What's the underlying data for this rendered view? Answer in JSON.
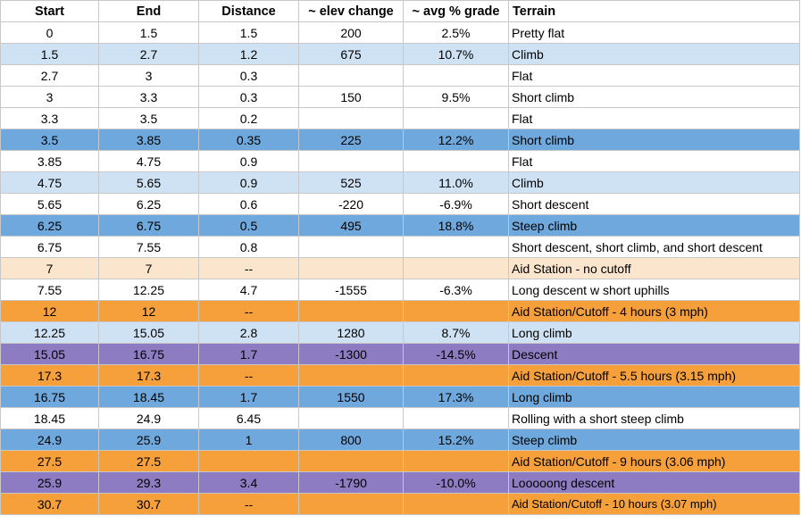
{
  "colors": {
    "white": "#ffffff",
    "light_blue": "#cfe2f3",
    "blue": "#6fa8dc",
    "peach": "#fce5cd",
    "orange": "#f6a03c",
    "purple": "#8e7cc3"
  },
  "headers": [
    "Start",
    "End",
    "Distance",
    "~ elev change",
    "~ avg % grade",
    "Terrain"
  ],
  "rows": [
    {
      "start": "0",
      "end": "1.5",
      "distance": "1.5",
      "elev": "200",
      "grade": "2.5%",
      "terrain": "Pretty flat",
      "color": "white"
    },
    {
      "start": "1.5",
      "end": "2.7",
      "distance": "1.2",
      "elev": "675",
      "grade": "10.7%",
      "terrain": "Climb",
      "color": "light_blue"
    },
    {
      "start": "2.7",
      "end": "3",
      "distance": "0.3",
      "elev": "",
      "grade": "",
      "terrain": "Flat",
      "color": "white"
    },
    {
      "start": "3",
      "end": "3.3",
      "distance": "0.3",
      "elev": "150",
      "grade": "9.5%",
      "terrain": "Short climb",
      "color": "white"
    },
    {
      "start": "3.3",
      "end": "3.5",
      "distance": "0.2",
      "elev": "",
      "grade": "",
      "terrain": "Flat",
      "color": "white"
    },
    {
      "start": "3.5",
      "end": "3.85",
      "distance": "0.35",
      "elev": "225",
      "grade": "12.2%",
      "terrain": "Short climb",
      "color": "blue"
    },
    {
      "start": "3.85",
      "end": "4.75",
      "distance": "0.9",
      "elev": "",
      "grade": "",
      "terrain": "Flat",
      "color": "white"
    },
    {
      "start": "4.75",
      "end": "5.65",
      "distance": "0.9",
      "elev": "525",
      "grade": "11.0%",
      "terrain": "Climb",
      "color": "light_blue"
    },
    {
      "start": "5.65",
      "end": "6.25",
      "distance": "0.6",
      "elev": "-220",
      "grade": "-6.9%",
      "terrain": "Short descent",
      "color": "white"
    },
    {
      "start": "6.25",
      "end": "6.75",
      "distance": "0.5",
      "elev": "495",
      "grade": "18.8%",
      "terrain": "Steep climb",
      "color": "blue"
    },
    {
      "start": "6.75",
      "end": "7.55",
      "distance": "0.8",
      "elev": "",
      "grade": "",
      "terrain": "Short descent, short climb, and short descent",
      "color": "white"
    },
    {
      "start": "7",
      "end": "7",
      "distance": "--",
      "elev": "",
      "grade": "",
      "terrain": "Aid Station - no cutoff",
      "color": "peach"
    },
    {
      "start": "7.55",
      "end": "12.25",
      "distance": "4.7",
      "elev": "-1555",
      "grade": "-6.3%",
      "terrain": "Long descent w short uphills",
      "color": "white"
    },
    {
      "start": "12",
      "end": "12",
      "distance": "--",
      "elev": "",
      "grade": "",
      "terrain": "Aid Station/Cutoff - 4 hours (3 mph)",
      "color": "orange"
    },
    {
      "start": "12.25",
      "end": "15.05",
      "distance": "2.8",
      "elev": "1280",
      "grade": "8.7%",
      "terrain": "Long climb",
      "color": "light_blue"
    },
    {
      "start": "15.05",
      "end": "16.75",
      "distance": "1.7",
      "elev": "-1300",
      "grade": "-14.5%",
      "terrain": "Descent",
      "color": "purple"
    },
    {
      "start": "17.3",
      "end": "17.3",
      "distance": "--",
      "elev": "",
      "grade": "",
      "terrain": "Aid Station/Cutoff - 5.5 hours (3.15 mph)",
      "color": "orange"
    },
    {
      "start": "16.75",
      "end": "18.45",
      "distance": "1.7",
      "elev": "1550",
      "grade": "17.3%",
      "terrain": "Long climb",
      "color": "blue"
    },
    {
      "start": "18.45",
      "end": "24.9",
      "distance": "6.45",
      "elev": "",
      "grade": "",
      "terrain": "Rolling with a short steep climb",
      "color": "white"
    },
    {
      "start": "24.9",
      "end": "25.9",
      "distance": "1",
      "elev": "800",
      "grade": "15.2%",
      "terrain": "Steep climb",
      "color": "blue"
    },
    {
      "start": "27.5",
      "end": "27.5",
      "distance": "",
      "elev": "",
      "grade": "",
      "terrain": "Aid Station/Cutoff - 9 hours (3.06 mph)",
      "color": "orange"
    },
    {
      "start": "25.9",
      "end": "29.3",
      "distance": "3.4",
      "elev": "-1790",
      "grade": "-10.0%",
      "terrain": "Looooong descent",
      "color": "purple"
    },
    {
      "start": "30.7",
      "end": "30.7",
      "distance": "--",
      "elev": "",
      "grade": "",
      "terrain": "Aid Station/Cutoff - 10 hours (3.07 mph)",
      "color": "orange",
      "small": true
    }
  ]
}
